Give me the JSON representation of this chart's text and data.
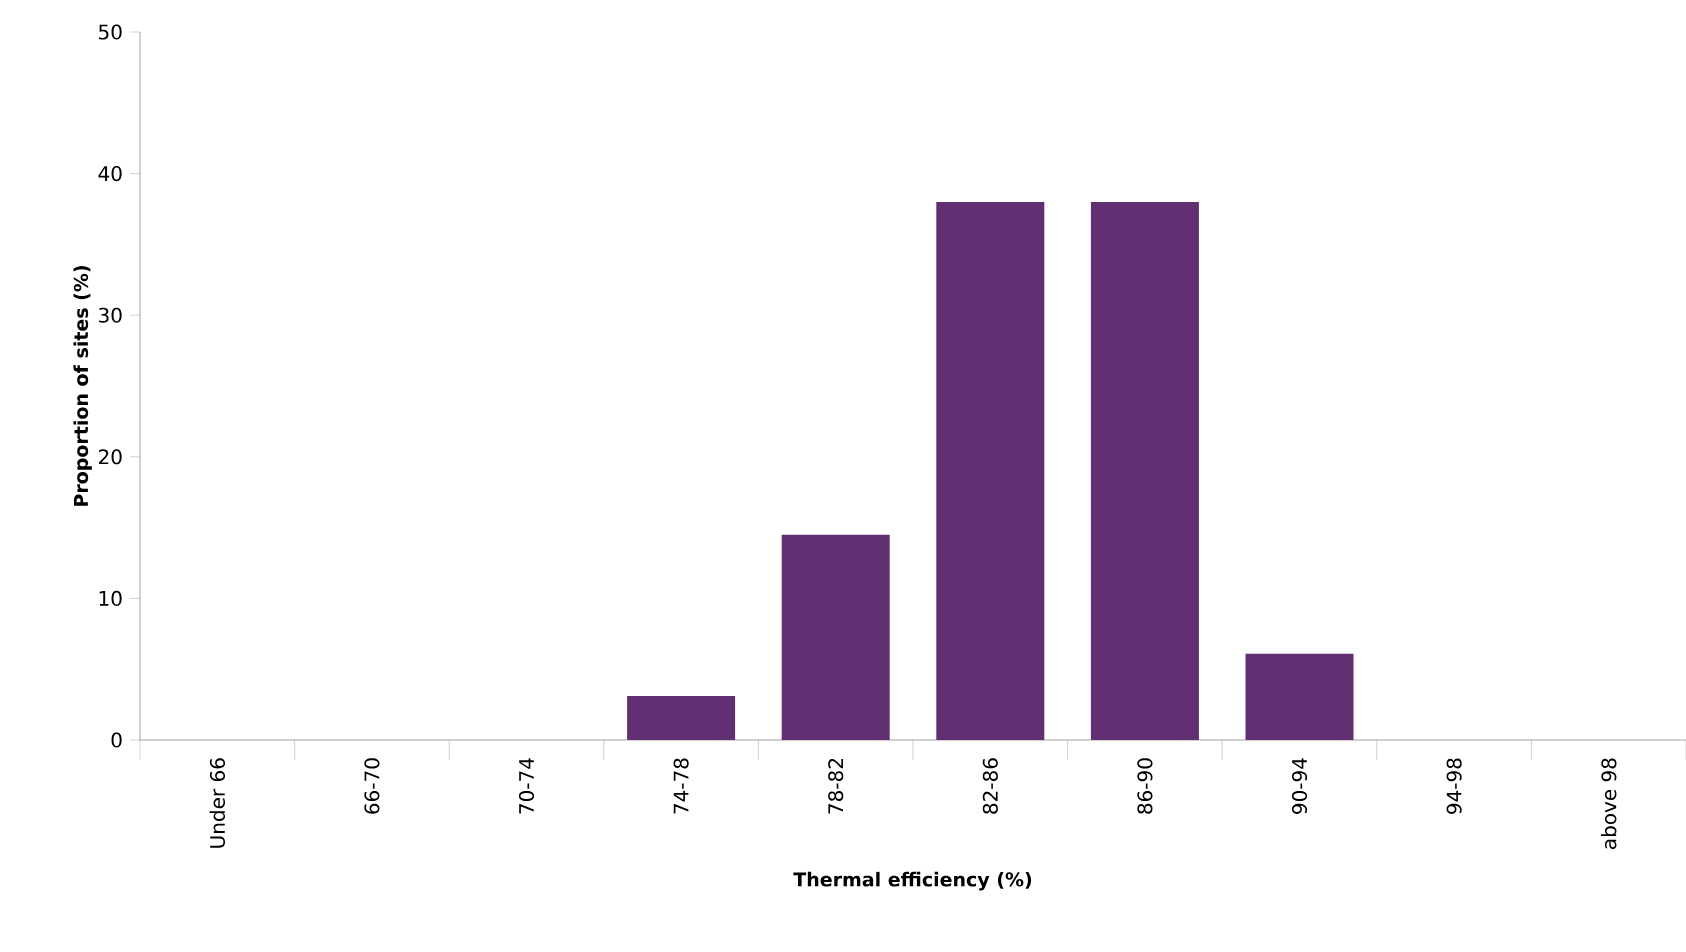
{
  "chart_data": {
    "type": "bar",
    "xlabel": "Thermal efficiency (%)",
    "ylabel": "Proportion of sites (%)",
    "categories": [
      "Under 66",
      "66-70",
      "70-74",
      "74-78",
      "78-82",
      "82-86",
      "86-90",
      "90-94",
      "94-98",
      "above 98"
    ],
    "values": [
      0,
      0,
      0,
      3.1,
      14.5,
      38,
      38,
      6.1,
      0,
      0
    ],
    "color": "#622f73",
    "ylim": [
      0,
      50
    ],
    "yticks": [
      0,
      10,
      20,
      30,
      40,
      50
    ]
  }
}
